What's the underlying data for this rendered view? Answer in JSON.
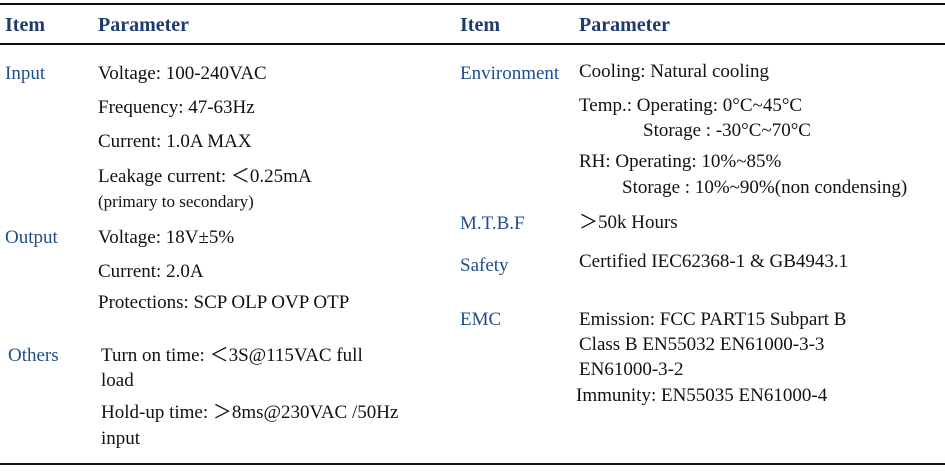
{
  "header": {
    "item_label": "Item",
    "parameter_label": "Parameter"
  },
  "left": {
    "input": {
      "item": "Input",
      "voltage": "Voltage: 100-240VAC",
      "frequency": "Frequency: 47-63Hz",
      "current": "Current: 1.0A MAX",
      "leakage": "Leakage current: ＜0.25mA",
      "leakage_note": "(primary to secondary)"
    },
    "output": {
      "item": "Output",
      "voltage": "Voltage: 18V±5%",
      "current": "Current: 2.0A",
      "protections": "Protections: SCP OLP OVP OTP"
    },
    "others": {
      "item": "Others",
      "turn_on_1": "Turn on time: ＜3S@115VAC full",
      "turn_on_2": "load",
      "hold_up_1": "Hold-up time: ＞8ms@230VAC /50Hz",
      "hold_up_2": "input"
    }
  },
  "right": {
    "environment": {
      "item": "Environment",
      "cooling": "Cooling: Natural cooling",
      "temp_operating": "Temp.: Operating: 0°C~45°C",
      "temp_storage": "Storage : -30°C~70°C",
      "rh_operating": "RH: Operating: 10%~85%",
      "rh_storage": "Storage : 10%~90%(non condensing)"
    },
    "mtbf": {
      "item": "M.T.B.F",
      "value": "＞50k Hours"
    },
    "safety": {
      "item": "Safety",
      "value": "Certified IEC62368-1 & GB4943.1"
    },
    "emc": {
      "item": "EMC",
      "line1": "Emission: FCC PART15  Subpart B",
      "line2": "Class B  EN55032  EN61000-3-3",
      "line3": "EN61000-3-2",
      "line4": "Immunity: EN55035 EN61000-4"
    }
  }
}
